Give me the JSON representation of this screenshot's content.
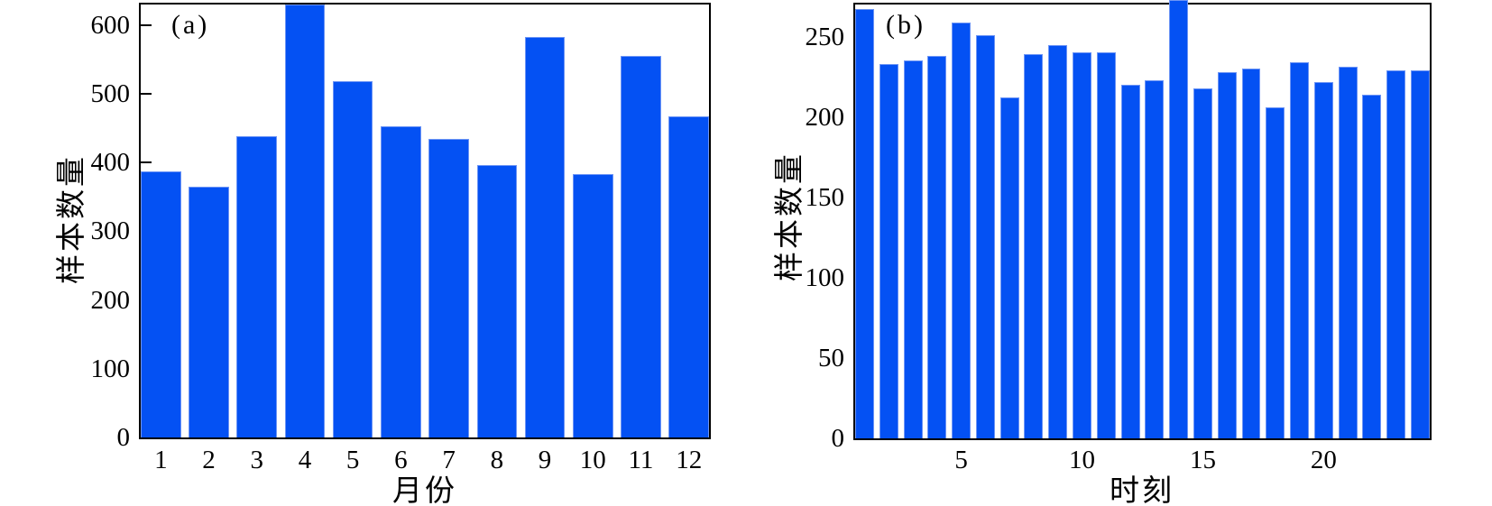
{
  "figure": {
    "background": "#ffffff",
    "bar_color": "#0451f3",
    "bar_edge_color": "#6d95f5",
    "axis_color": "#000000"
  },
  "chart_data": [
    {
      "type": "bar",
      "panel_label": "(a)",
      "xlabel": "月份",
      "ylabel": "样本数量",
      "categories": [
        1,
        2,
        3,
        4,
        5,
        6,
        7,
        8,
        9,
        10,
        11,
        12
      ],
      "values": [
        387,
        365,
        439,
        630,
        519,
        453,
        434,
        396,
        583,
        383,
        555,
        467
      ],
      "ylim": [
        0,
        630
      ],
      "yticks": [
        0,
        100,
        200,
        300,
        400,
        500,
        600
      ],
      "xticks": [
        1,
        2,
        3,
        4,
        5,
        6,
        7,
        8,
        9,
        10,
        11,
        12
      ],
      "grid": false,
      "legend": "none"
    },
    {
      "type": "bar",
      "panel_label": "(b)",
      "xlabel": "时刻",
      "ylabel": "样本数量",
      "categories": [
        1,
        2,
        3,
        4,
        5,
        6,
        7,
        8,
        9,
        10,
        11,
        12,
        13,
        14,
        15,
        16,
        17,
        18,
        19,
        20,
        21,
        22,
        23,
        24
      ],
      "values": [
        267,
        233,
        235,
        238,
        259,
        251,
        212,
        239,
        245,
        240,
        240,
        220,
        223,
        272,
        218,
        228,
        230,
        206,
        234,
        222,
        231,
        214,
        229,
        229
      ],
      "ylim": [
        0,
        270
      ],
      "yticks": [
        0,
        50,
        100,
        150,
        200,
        250
      ],
      "xticks": [
        5,
        10,
        15,
        20
      ],
      "grid": false,
      "legend": "none"
    }
  ]
}
